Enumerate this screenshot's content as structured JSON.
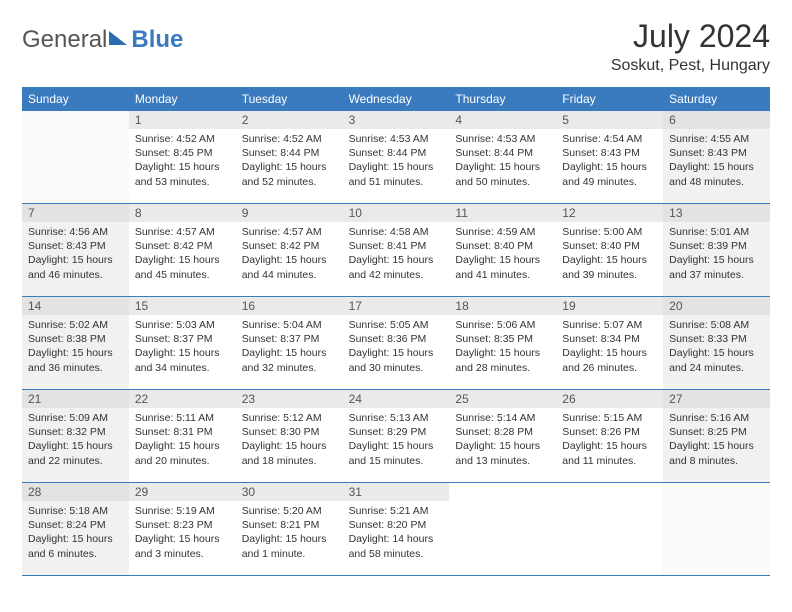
{
  "logo": {
    "part1": "General",
    "part2": "Blue"
  },
  "title": "July 2024",
  "location": "Soskut, Pest, Hungary",
  "day_headers": [
    "Sunday",
    "Monday",
    "Tuesday",
    "Wednesday",
    "Thursday",
    "Friday",
    "Saturday"
  ],
  "colors": {
    "header_bar": "#3a7bbf",
    "text": "#333333"
  },
  "weeks": [
    [
      null,
      {
        "n": "1",
        "sr": "4:52 AM",
        "ss": "8:45 PM",
        "dl": "15 hours and 53 minutes."
      },
      {
        "n": "2",
        "sr": "4:52 AM",
        "ss": "8:44 PM",
        "dl": "15 hours and 52 minutes."
      },
      {
        "n": "3",
        "sr": "4:53 AM",
        "ss": "8:44 PM",
        "dl": "15 hours and 51 minutes."
      },
      {
        "n": "4",
        "sr": "4:53 AM",
        "ss": "8:44 PM",
        "dl": "15 hours and 50 minutes."
      },
      {
        "n": "5",
        "sr": "4:54 AM",
        "ss": "8:43 PM",
        "dl": "15 hours and 49 minutes."
      },
      {
        "n": "6",
        "sr": "4:55 AM",
        "ss": "8:43 PM",
        "dl": "15 hours and 48 minutes."
      }
    ],
    [
      {
        "n": "7",
        "sr": "4:56 AM",
        "ss": "8:43 PM",
        "dl": "15 hours and 46 minutes."
      },
      {
        "n": "8",
        "sr": "4:57 AM",
        "ss": "8:42 PM",
        "dl": "15 hours and 45 minutes."
      },
      {
        "n": "9",
        "sr": "4:57 AM",
        "ss": "8:42 PM",
        "dl": "15 hours and 44 minutes."
      },
      {
        "n": "10",
        "sr": "4:58 AM",
        "ss": "8:41 PM",
        "dl": "15 hours and 42 minutes."
      },
      {
        "n": "11",
        "sr": "4:59 AM",
        "ss": "8:40 PM",
        "dl": "15 hours and 41 minutes."
      },
      {
        "n": "12",
        "sr": "5:00 AM",
        "ss": "8:40 PM",
        "dl": "15 hours and 39 minutes."
      },
      {
        "n": "13",
        "sr": "5:01 AM",
        "ss": "8:39 PM",
        "dl": "15 hours and 37 minutes."
      }
    ],
    [
      {
        "n": "14",
        "sr": "5:02 AM",
        "ss": "8:38 PM",
        "dl": "15 hours and 36 minutes."
      },
      {
        "n": "15",
        "sr": "5:03 AM",
        "ss": "8:37 PM",
        "dl": "15 hours and 34 minutes."
      },
      {
        "n": "16",
        "sr": "5:04 AM",
        "ss": "8:37 PM",
        "dl": "15 hours and 32 minutes."
      },
      {
        "n": "17",
        "sr": "5:05 AM",
        "ss": "8:36 PM",
        "dl": "15 hours and 30 minutes."
      },
      {
        "n": "18",
        "sr": "5:06 AM",
        "ss": "8:35 PM",
        "dl": "15 hours and 28 minutes."
      },
      {
        "n": "19",
        "sr": "5:07 AM",
        "ss": "8:34 PM",
        "dl": "15 hours and 26 minutes."
      },
      {
        "n": "20",
        "sr": "5:08 AM",
        "ss": "8:33 PM",
        "dl": "15 hours and 24 minutes."
      }
    ],
    [
      {
        "n": "21",
        "sr": "5:09 AM",
        "ss": "8:32 PM",
        "dl": "15 hours and 22 minutes."
      },
      {
        "n": "22",
        "sr": "5:11 AM",
        "ss": "8:31 PM",
        "dl": "15 hours and 20 minutes."
      },
      {
        "n": "23",
        "sr": "5:12 AM",
        "ss": "8:30 PM",
        "dl": "15 hours and 18 minutes."
      },
      {
        "n": "24",
        "sr": "5:13 AM",
        "ss": "8:29 PM",
        "dl": "15 hours and 15 minutes."
      },
      {
        "n": "25",
        "sr": "5:14 AM",
        "ss": "8:28 PM",
        "dl": "15 hours and 13 minutes."
      },
      {
        "n": "26",
        "sr": "5:15 AM",
        "ss": "8:26 PM",
        "dl": "15 hours and 11 minutes."
      },
      {
        "n": "27",
        "sr": "5:16 AM",
        "ss": "8:25 PM",
        "dl": "15 hours and 8 minutes."
      }
    ],
    [
      {
        "n": "28",
        "sr": "5:18 AM",
        "ss": "8:24 PM",
        "dl": "15 hours and 6 minutes."
      },
      {
        "n": "29",
        "sr": "5:19 AM",
        "ss": "8:23 PM",
        "dl": "15 hours and 3 minutes."
      },
      {
        "n": "30",
        "sr": "5:20 AM",
        "ss": "8:21 PM",
        "dl": "15 hours and 1 minute."
      },
      {
        "n": "31",
        "sr": "5:21 AM",
        "ss": "8:20 PM",
        "dl": "14 hours and 58 minutes."
      },
      null,
      null,
      null
    ]
  ],
  "labels": {
    "sunrise": "Sunrise:",
    "sunset": "Sunset:",
    "daylight": "Daylight:"
  }
}
